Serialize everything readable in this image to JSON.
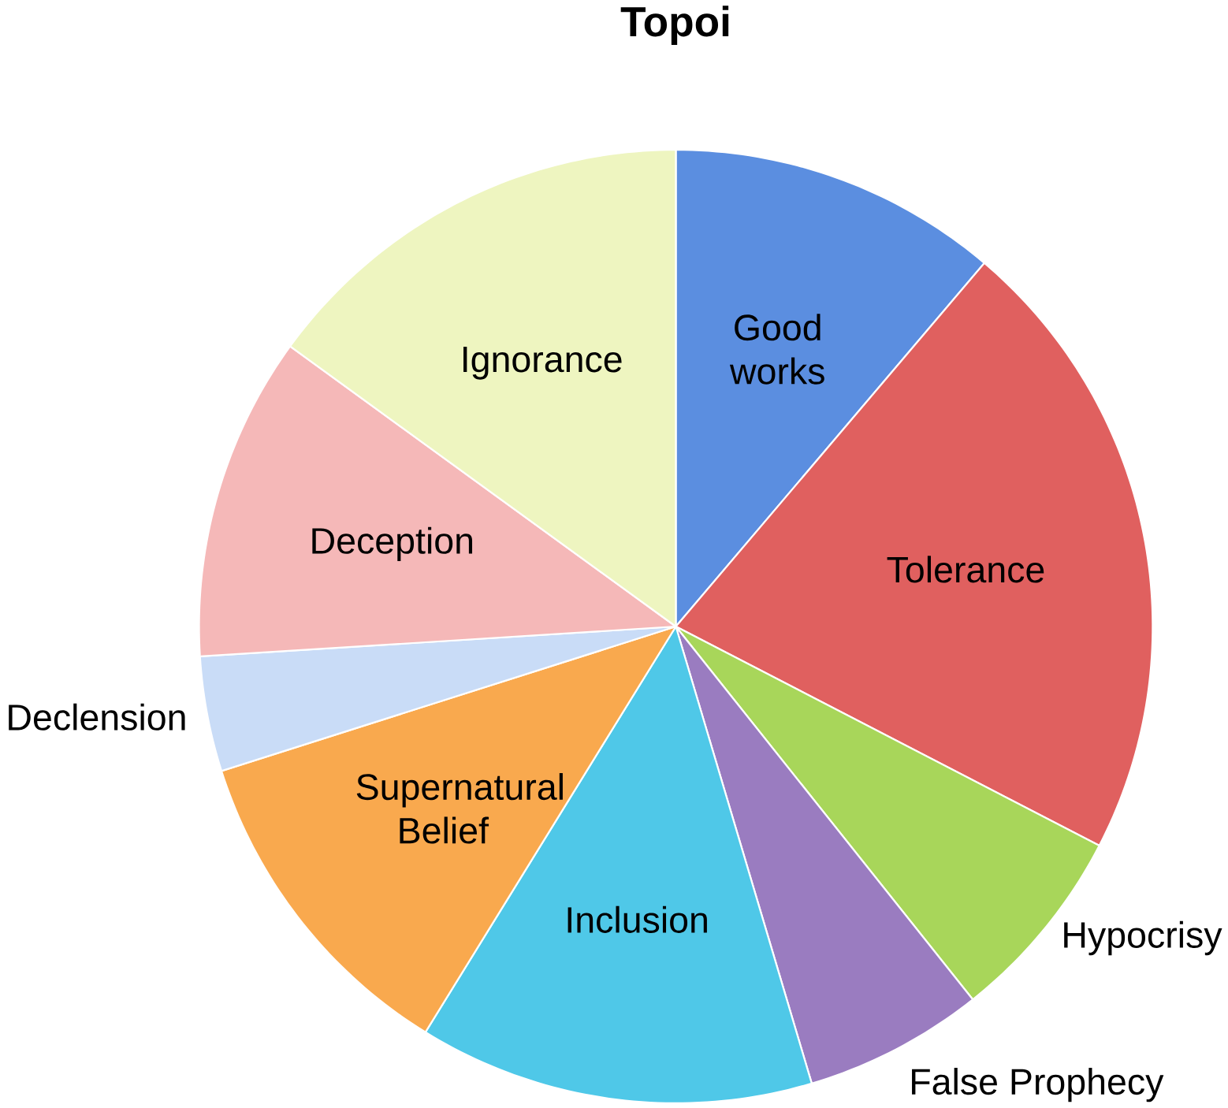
{
  "chart_data": {
    "type": "pie",
    "title": "Topoi",
    "categories": [
      "Good works",
      "Tolerance",
      "Hypocrisy",
      "False Prophecy",
      "Inclusion",
      "Supernatural Belief",
      "Declension",
      "Deception",
      "Ignorance"
    ],
    "values": [
      11.2,
      21.4,
      6.7,
      6.1,
      13.4,
      11.3,
      3.9,
      11.0,
      15.0
    ],
    "colors": [
      "#5b8ee0",
      "#e0605f",
      "#a8d65a",
      "#9a7cc0",
      "#4fc8e8",
      "#f9a94e",
      "#c9dcf7",
      "#f5b8b8",
      "#eef5c0"
    ]
  }
}
